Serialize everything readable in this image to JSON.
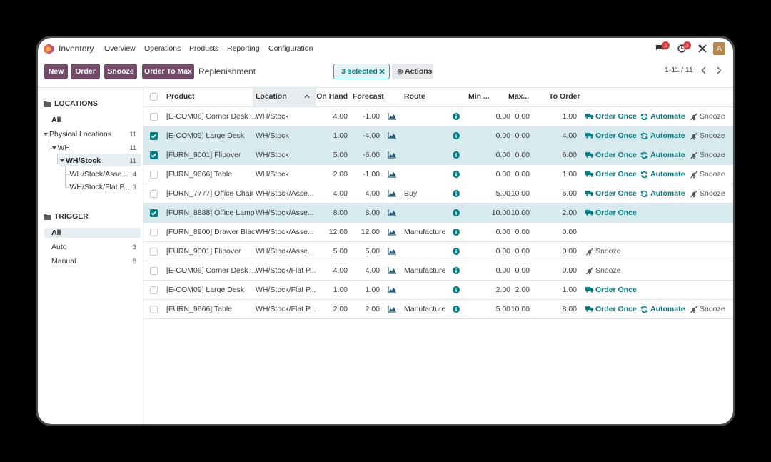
{
  "navbar": {
    "app": "Inventory",
    "menu": [
      "Overview",
      "Operations",
      "Products",
      "Reporting",
      "Configuration"
    ],
    "messages_badge": "2",
    "activities_badge": "3",
    "avatar": "A"
  },
  "control_panel": {
    "buttons": [
      "New",
      "Order",
      "Snooze",
      "Order To Max"
    ],
    "breadcrumb": "Replenishment",
    "selection": "3 selected",
    "actions": "Actions",
    "pager": "1-11 / 11"
  },
  "sidebar": {
    "locations": {
      "title": "LOCATIONS",
      "all": "All",
      "tree": [
        {
          "label": "Physical Locations",
          "count": "11",
          "children": [
            {
              "label": "WH",
              "count": "11",
              "children": [
                {
                  "label": "WH/Stock",
                  "count": "11",
                  "active": true,
                  "children": [
                    {
                      "label": "WH/Stock/Asse...",
                      "count": "4"
                    },
                    {
                      "label": "WH/Stock/Flat P...",
                      "count": "3"
                    }
                  ]
                }
              ]
            }
          ]
        }
      ]
    },
    "trigger": {
      "title": "TRIGGER",
      "items": [
        {
          "label": "All",
          "active": true
        },
        {
          "label": "Auto",
          "count": "3"
        },
        {
          "label": "Manual",
          "count": "8"
        }
      ]
    }
  },
  "table": {
    "columns": {
      "product": "Product",
      "location": "Location",
      "on_hand": "On Hand",
      "forecast": "Forecast",
      "route": "Route",
      "min": "Min ...",
      "max": "Max...",
      "to_order": "To Order"
    },
    "sorted_by": "location",
    "rows": [
      {
        "selected": false,
        "product": "[E-COM06] Corner Desk ...",
        "location": "WH/Stock",
        "on_hand": "4.00",
        "forecast": "-1.00",
        "min": "0.00",
        "max": "0.00",
        "to_order": "1.00",
        "actions": {
          "order_once": "Order Once",
          "automate": "Automate",
          "snooze": "Snooze"
        }
      },
      {
        "selected": true,
        "product": "[E-COM09] Large Desk",
        "location": "WH/Stock",
        "on_hand": "1.00",
        "forecast": "-4.00",
        "min": "0.00",
        "max": "0.00",
        "to_order": "4.00",
        "actions": {
          "order_once": "Order Once",
          "automate": "Automate",
          "snooze": "Snooze"
        }
      },
      {
        "selected": true,
        "product": "[FURN_9001] Flipover",
        "location": "WH/Stock",
        "on_hand": "5.00",
        "forecast": "-6.00",
        "min": "0.00",
        "max": "0.00",
        "to_order": "6.00",
        "actions": {
          "order_once": "Order Once",
          "automate": "Automate",
          "snooze": "Snooze"
        }
      },
      {
        "selected": false,
        "product": "[FURN_9666] Table",
        "location": "WH/Stock",
        "on_hand": "2.00",
        "forecast": "-1.00",
        "min": "0.00",
        "max": "0.00",
        "to_order": "1.00",
        "actions": {
          "order_once": "Order Once",
          "automate": "Automate",
          "snooze": "Snooze"
        }
      },
      {
        "selected": false,
        "product": "[FURN_7777] Office Chair",
        "location": "WH/Stock/Asse...",
        "on_hand": "4.00",
        "forecast": "4.00",
        "route": "Buy",
        "min": "5.00",
        "max": "10.00",
        "to_order": "6.00",
        "actions": {
          "order_once": "Order Once",
          "automate": "Automate",
          "snooze": "Snooze"
        }
      },
      {
        "selected": true,
        "product": "[FURN_8888] Office Lamp",
        "location": "WH/Stock/Asse...",
        "on_hand": "8.00",
        "forecast": "8.00",
        "min": "10.00",
        "max": "10.00",
        "to_order": "2.00",
        "actions": {
          "order_once": "Order Once"
        }
      },
      {
        "selected": false,
        "product": "[FURN_8900] Drawer Black",
        "location": "WH/Stock/Asse...",
        "on_hand": "12.00",
        "forecast": "12.00",
        "route": "Manufacture",
        "min": "0.00",
        "max": "0.00",
        "to_order": "0.00"
      },
      {
        "selected": false,
        "product": "[FURN_9001] Flipover",
        "location": "WH/Stock/Asse...",
        "on_hand": "5.00",
        "forecast": "5.00",
        "min": "0.00",
        "max": "0.00",
        "to_order": "0.00",
        "actions": {
          "snooze": "Snooze"
        }
      },
      {
        "selected": false,
        "product": "[E-COM06] Corner Desk ...",
        "location": "WH/Stock/Flat P...",
        "on_hand": "4.00",
        "forecast": "4.00",
        "route": "Manufacture",
        "min": "0.00",
        "max": "0.00",
        "to_order": "0.00",
        "actions": {
          "snooze": "Snooze"
        }
      },
      {
        "selected": false,
        "product": "[E-COM09] Large Desk",
        "location": "WH/Stock/Flat P...",
        "on_hand": "1.00",
        "forecast": "1.00",
        "min": "2.00",
        "max": "2.00",
        "to_order": "1.00",
        "actions": {
          "order_once": "Order Once"
        }
      },
      {
        "selected": false,
        "product": "[FURN_9666] Table",
        "location": "WH/Stock/Flat P...",
        "on_hand": "2.00",
        "forecast": "2.00",
        "route": "Manufacture",
        "min": "5.00",
        "max": "10.00",
        "to_order": "8.00",
        "actions": {
          "order_once": "Order Once",
          "automate": "Automate",
          "snooze": "Snooze"
        }
      }
    ]
  }
}
